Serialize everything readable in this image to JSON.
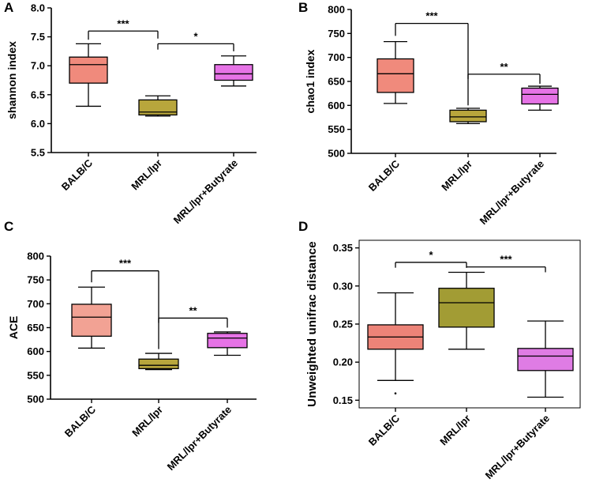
{
  "chart_data": [
    {
      "panel": "A",
      "type": "box",
      "title": "",
      "ylabel": "shannon index",
      "ylim": [
        5.5,
        8.0
      ],
      "yticks": [
        5.5,
        6.0,
        6.5,
        7.0,
        7.5,
        8.0
      ],
      "ytick_labels": [
        "5.5",
        "6.0",
        "6.5",
        "7.0",
        "7.5",
        "8.0"
      ],
      "categories": [
        "BALB/C",
        "MRL/lpr",
        "MRL/lpr+Butyrate"
      ],
      "colors": [
        "#f08a7c",
        "#b8a63c",
        "#e673e6"
      ],
      "boxes": [
        {
          "min": 6.3,
          "q1": 6.7,
          "median": 7.02,
          "q3": 7.15,
          "max": 7.38
        },
        {
          "min": 6.13,
          "q1": 6.15,
          "median": 6.2,
          "q3": 6.41,
          "max": 6.48
        },
        {
          "min": 6.65,
          "q1": 6.75,
          "median": 6.86,
          "q3": 7.02,
          "max": 7.17
        }
      ],
      "comparisons": [
        {
          "from": 0,
          "to": 1,
          "y": 7.6,
          "label": "***",
          "drop_to": [
            7.45,
            7.47
          ]
        },
        {
          "from": 1,
          "to": 2,
          "y": 7.38,
          "label": "*",
          "drop_to": [
            7.28,
            7.25
          ]
        }
      ]
    },
    {
      "panel": "B",
      "type": "box",
      "title": "",
      "ylabel": "chao1 index",
      "ylim": [
        500,
        800
      ],
      "yticks": [
        500,
        550,
        600,
        650,
        700,
        750,
        800
      ],
      "ytick_labels": [
        "500",
        "550",
        "600",
        "650",
        "700",
        "750",
        "800"
      ],
      "categories": [
        "BALB/C",
        "MRL/lpr",
        "MRL/lpr+Butyrate"
      ],
      "colors": [
        "#f08a7c",
        "#b8a63c",
        "#e673e6"
      ],
      "boxes": [
        {
          "min": 604,
          "q1": 627,
          "median": 666,
          "q3": 697,
          "max": 733
        },
        {
          "min": 562,
          "q1": 566,
          "median": 576,
          "q3": 590,
          "max": 594
        },
        {
          "min": 590,
          "q1": 603,
          "median": 623,
          "q3": 636,
          "max": 640
        }
      ],
      "comparisons": [
        {
          "from": 0,
          "to": 1,
          "y": 771,
          "label": "***",
          "drop_to": [
            745,
            600
          ]
        },
        {
          "from": 1,
          "to": 2,
          "y": 665,
          "label": "**",
          "drop_to": [
            655,
            645
          ]
        }
      ]
    },
    {
      "panel": "C",
      "type": "box",
      "title": "",
      "ylabel": "ACE",
      "ylim": [
        500,
        800
      ],
      "yticks": [
        500,
        550,
        600,
        650,
        700,
        750,
        800
      ],
      "ytick_labels": [
        "500",
        "550",
        "600",
        "650",
        "700",
        "750",
        "800"
      ],
      "categories": [
        "BALB/C",
        "MRL/lpr",
        "MRL/lpr+Butyrate"
      ],
      "colors": [
        "#f2a294",
        "#b8a63c",
        "#e673e6"
      ],
      "boxes": [
        {
          "min": 607,
          "q1": 632,
          "median": 672,
          "q3": 699,
          "max": 735
        },
        {
          "min": 562,
          "q1": 564,
          "median": 571,
          "q3": 584,
          "max": 596
        },
        {
          "min": 592,
          "q1": 608,
          "median": 628,
          "q3": 638,
          "max": 641
        }
      ],
      "comparisons": [
        {
          "from": 0,
          "to": 1,
          "y": 769,
          "label": "***",
          "drop_to": [
            745,
            605
          ]
        },
        {
          "from": 1,
          "to": 2,
          "y": 670,
          "label": "**",
          "drop_to": [
            660,
            650
          ]
        }
      ]
    },
    {
      "panel": "D",
      "type": "box",
      "title": "",
      "ylabel": "Unweighted unifrac distance",
      "ylim": [
        0.14,
        0.36
      ],
      "yticks": [
        0.15,
        0.2,
        0.25,
        0.3,
        0.35
      ],
      "ytick_labels": [
        "0.15",
        "0.20",
        "0.25",
        "0.30",
        "0.35"
      ],
      "categories": [
        "BALB/C",
        "MRL/lpr",
        "MRL/lpr+Butyrate"
      ],
      "colors": [
        "#ec8378",
        "#a29c34",
        "#df7ce4"
      ],
      "boxes": [
        {
          "min": 0.176,
          "q1": 0.217,
          "median": 0.233,
          "q3": 0.249,
          "max": 0.291,
          "outliers": [
            0.159
          ]
        },
        {
          "min": 0.217,
          "q1": 0.246,
          "median": 0.278,
          "q3": 0.297,
          "max": 0.318
        },
        {
          "min": 0.154,
          "q1": 0.189,
          "median": 0.208,
          "q3": 0.218,
          "max": 0.254
        }
      ],
      "comparisons": [
        {
          "from": 0,
          "to": 1,
          "y": 0.331,
          "label": "*",
          "drop_to": [
            0.324,
            0.324
          ]
        },
        {
          "from": 1,
          "to": 2,
          "y": 0.325,
          "label": "***",
          "drop_to": [
            0.324,
            0.318
          ]
        }
      ]
    }
  ]
}
